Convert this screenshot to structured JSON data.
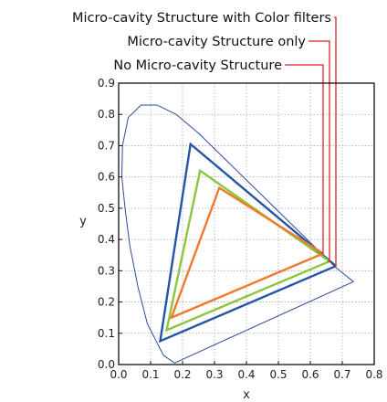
{
  "chart_data": {
    "type": "line",
    "xlabel": "x",
    "ylabel": "y",
    "xlim": [
      0.0,
      0.8
    ],
    "ylim": [
      0.0,
      0.9
    ],
    "xticks": [
      "0.0",
      "0.1",
      "0.2",
      "0.3",
      "0.4",
      "0.5",
      "0.6",
      "0.7",
      "0.8"
    ],
    "yticks": [
      "0.0",
      "0.1",
      "0.2",
      "0.3",
      "0.4",
      "0.5",
      "0.6",
      "0.7",
      "0.8",
      "0.9"
    ],
    "grid": true,
    "legend_position": "top-right, with leader lines to each triangle's red vertex",
    "locus": {
      "color": "#2e4a9a",
      "points": [
        [
          0.175,
          0.005
        ],
        [
          0.14,
          0.03
        ],
        [
          0.12,
          0.07
        ],
        [
          0.09,
          0.13
        ],
        [
          0.06,
          0.25
        ],
        [
          0.035,
          0.38
        ],
        [
          0.02,
          0.5
        ],
        [
          0.01,
          0.6
        ],
        [
          0.012,
          0.7
        ],
        [
          0.03,
          0.79
        ],
        [
          0.07,
          0.83
        ],
        [
          0.12,
          0.83
        ],
        [
          0.18,
          0.8
        ],
        [
          0.25,
          0.74
        ],
        [
          0.33,
          0.66
        ],
        [
          0.4,
          0.59
        ],
        [
          0.47,
          0.52
        ],
        [
          0.54,
          0.45
        ],
        [
          0.61,
          0.38
        ],
        [
          0.68,
          0.31
        ],
        [
          0.735,
          0.265
        ],
        [
          0.175,
          0.005
        ]
      ]
    },
    "series": [
      {
        "name": "Micro-cavity Structure with Color filters",
        "color": "#2454a6",
        "points": [
          [
            0.68,
            0.315
          ],
          [
            0.225,
            0.705
          ],
          [
            0.13,
            0.075
          ],
          [
            0.68,
            0.315
          ]
        ],
        "red_x": 0.68,
        "red_y": 0.315
      },
      {
        "name": "Micro-cavity Structure only",
        "color": "#8cc63f",
        "points": [
          [
            0.66,
            0.33
          ],
          [
            0.255,
            0.62
          ],
          [
            0.15,
            0.11
          ],
          [
            0.66,
            0.33
          ]
        ],
        "red_x": 0.66,
        "red_y": 0.33
      },
      {
        "name": "No Micro-cavity Structure",
        "color": "#ef7a2e",
        "points": [
          [
            0.64,
            0.355
          ],
          [
            0.315,
            0.565
          ],
          [
            0.165,
            0.15
          ],
          [
            0.64,
            0.355
          ]
        ],
        "red_x": 0.64,
        "red_y": 0.355
      }
    ],
    "leader_color": "#d92228"
  }
}
